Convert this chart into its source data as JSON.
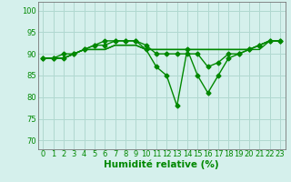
{
  "xlabel": "Humidité relative (%)",
  "xlim": [
    -0.5,
    23.5
  ],
  "ylim": [
    68,
    102
  ],
  "yticks": [
    70,
    75,
    80,
    85,
    90,
    95,
    100
  ],
  "xticks": [
    0,
    1,
    2,
    3,
    4,
    5,
    6,
    7,
    8,
    9,
    10,
    11,
    12,
    13,
    14,
    15,
    16,
    17,
    18,
    19,
    20,
    21,
    22,
    23
  ],
  "background_color": "#d5f0ec",
  "grid_color": "#b0d8d0",
  "line_color": "#008800",
  "series_with_markers": [
    [
      89,
      89,
      89,
      90,
      91,
      92,
      93,
      93,
      93,
      93,
      91,
      87,
      85,
      78,
      91,
      85,
      81,
      85,
      89,
      90,
      91,
      92,
      93,
      93
    ],
    [
      89,
      89,
      90,
      90,
      91,
      92,
      92,
      93,
      93,
      93,
      92,
      90,
      90,
      90,
      90,
      90,
      87,
      88,
      90,
      90,
      91,
      92,
      93,
      93
    ]
  ],
  "series_plain": [
    [
      89,
      89,
      89,
      90,
      91,
      91,
      91,
      92,
      92,
      92,
      91,
      91,
      91,
      91,
      91,
      91,
      91,
      91,
      91,
      91,
      91,
      91,
      93,
      93
    ],
    [
      89,
      89,
      89,
      90,
      91,
      91,
      91,
      92,
      92,
      92,
      91,
      91,
      91,
      91,
      91,
      91,
      91,
      91,
      91,
      91,
      91,
      92,
      93,
      93
    ]
  ],
  "marker": "D",
  "marker_size": 2.5,
  "line_width": 1.0,
  "font_color": "#008800",
  "tick_fontsize": 6,
  "xlabel_fontsize": 7.5
}
